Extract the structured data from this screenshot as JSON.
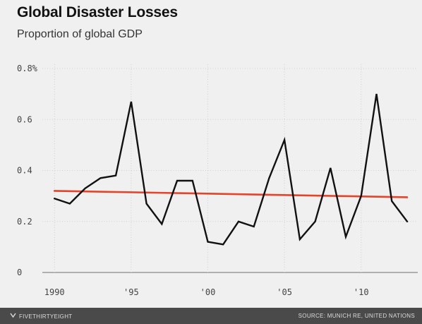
{
  "title": "Global Disaster Losses",
  "subtitle": "Proportion of global GDP",
  "footer": {
    "brand": "FIVETHIRTYEIGHT",
    "brand_icon": "fivethirtyeight-logo-icon",
    "source": "SOURCE: MUNICH RE, UNITED NATIONS"
  },
  "colors": {
    "series": "#111111",
    "trend": "#e5432a",
    "grid": "#cfcfcf",
    "baseline": "#888888",
    "background": "#f0f0f0",
    "footer": "#4a4a4a"
  },
  "chart_data": {
    "type": "line",
    "title": "Global Disaster Losses",
    "subtitle": "Proportion of global GDP",
    "xlabel": "",
    "ylabel": "",
    "x": [
      1990,
      1991,
      1992,
      1993,
      1994,
      1995,
      1996,
      1997,
      1998,
      1999,
      2000,
      2001,
      2002,
      2003,
      2004,
      2005,
      2006,
      2007,
      2008,
      2009,
      2010,
      2011,
      2012,
      2013
    ],
    "series": [
      {
        "values": [
          0.29,
          0.27,
          0.33,
          0.37,
          0.38,
          0.67,
          0.27,
          0.19,
          0.36,
          0.36,
          0.12,
          0.11,
          0.2,
          0.18,
          0.37,
          0.52,
          0.13,
          0.2,
          0.41,
          0.14,
          0.3,
          0.7,
          0.28,
          0.2
        ]
      }
    ],
    "trend_line": {
      "x": [
        1990,
        2013
      ],
      "values": [
        0.32,
        0.295
      ]
    },
    "xlim": [
      1989.3,
      2013.6
    ],
    "ylim": [
      0,
      0.8
    ],
    "x_ticks": [
      1990,
      1995,
      2000,
      2005,
      2010
    ],
    "x_tick_labels": [
      "1990",
      "'95",
      "'00",
      "'05",
      "'10"
    ],
    "y_ticks": [
      0,
      0.2,
      0.4,
      0.6,
      0.8
    ],
    "y_tick_labels": [
      "0",
      "0.2",
      "0.4",
      "0.6",
      "0.8%"
    ],
    "grid": true
  }
}
